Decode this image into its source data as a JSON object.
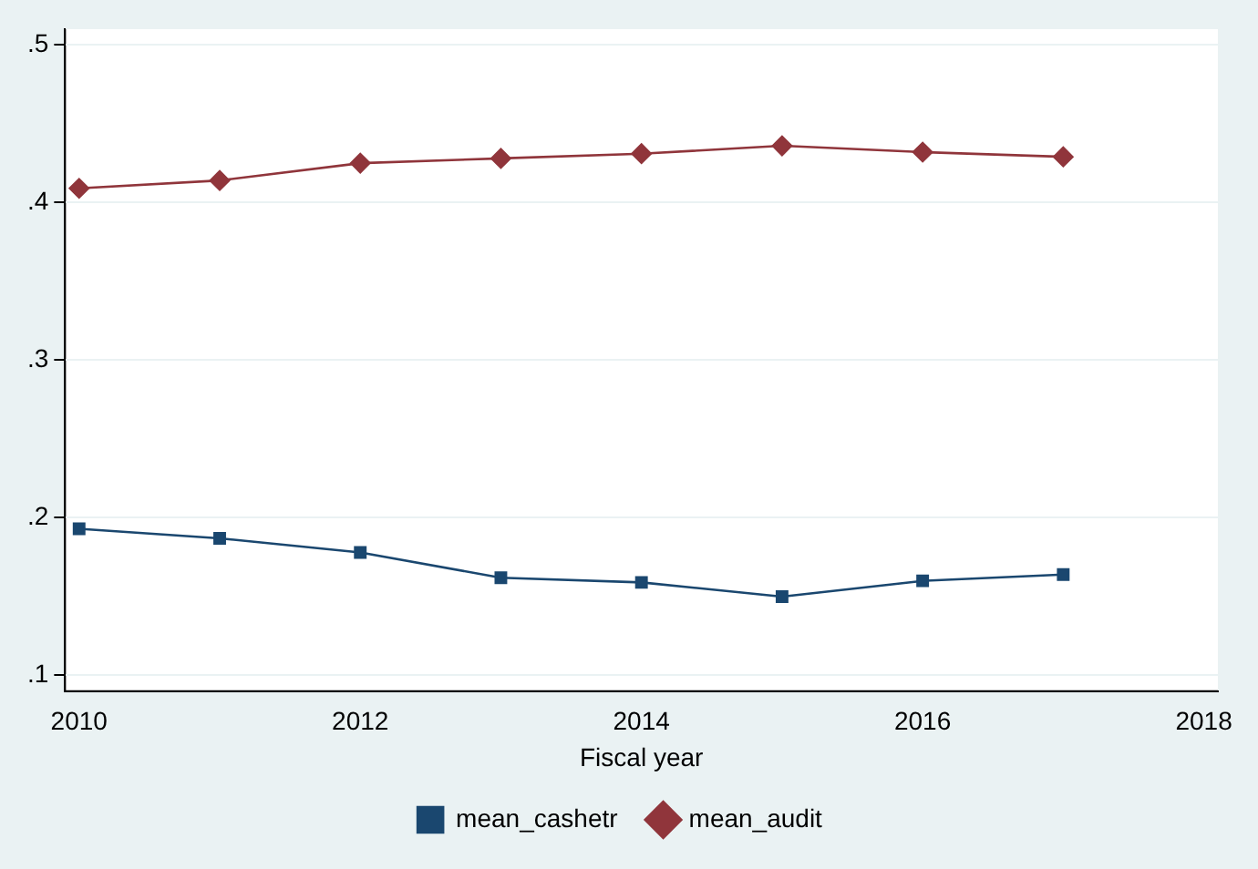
{
  "chart_data": {
    "type": "line",
    "xlabel": "Fiscal year",
    "x": [
      2010,
      2011,
      2012,
      2013,
      2014,
      2015,
      2016,
      2017
    ],
    "series": [
      {
        "name": "mean_cashetr",
        "color": "#1a476f",
        "marker": "square",
        "values": [
          0.193,
          0.187,
          0.178,
          0.162,
          0.159,
          0.15,
          0.16,
          0.164
        ]
      },
      {
        "name": "mean_audit",
        "color": "#90353b",
        "marker": "diamond",
        "values": [
          0.409,
          0.414,
          0.425,
          0.428,
          0.431,
          0.436,
          0.432,
          0.429
        ]
      }
    ],
    "xlim": [
      2009.9,
      2018.1
    ],
    "xticks": [
      2010,
      2012,
      2014,
      2016,
      2018
    ],
    "ylim": [
      0.09,
      0.51
    ],
    "yticks": [
      {
        "value": 0.1,
        "label": ".1"
      },
      {
        "value": 0.2,
        "label": ".2"
      },
      {
        "value": 0.3,
        "label": ".3"
      },
      {
        "value": 0.4,
        "label": ".4"
      },
      {
        "value": 0.5,
        "label": ".5"
      }
    ],
    "grid": "y",
    "legend": "bottom"
  }
}
